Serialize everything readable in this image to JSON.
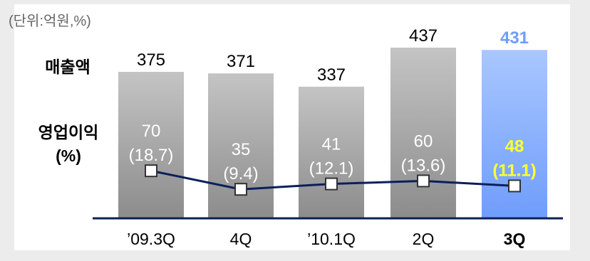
{
  "chart_data": {
    "type": "bar",
    "unit_note": "(단위:억원,%)",
    "row_labels": {
      "revenue": "매출액",
      "op_profit_line1": "영업이익",
      "op_profit_line2": "(%)"
    },
    "categories": [
      "’09.3Q",
      "4Q",
      "’10.1Q",
      "2Q",
      "3Q"
    ],
    "series": [
      {
        "name": "매출액",
        "type": "bar",
        "values": [
          375,
          371,
          337,
          437,
          431
        ]
      },
      {
        "name": "영업이익",
        "type": "label",
        "values": [
          70,
          35,
          41,
          60,
          48
        ]
      },
      {
        "name": "영업이익률(%)",
        "type": "line",
        "values": [
          18.7,
          9.4,
          12.1,
          13.6,
          11.1
        ]
      }
    ],
    "highlight_index": 4,
    "colors": {
      "bar_top": "#c4c4c4",
      "bar_bottom": "#8c8c8c",
      "highlight_bar_top": "#a9c7ff",
      "highlight_bar_bottom": "#6f9dfb",
      "highlight_value": "#6f9dfb",
      "highlight_profit": "#ffff33",
      "line": "#0b1f5c",
      "baseline": "#0b1f5c",
      "frame_bg": "#ececec"
    }
  }
}
